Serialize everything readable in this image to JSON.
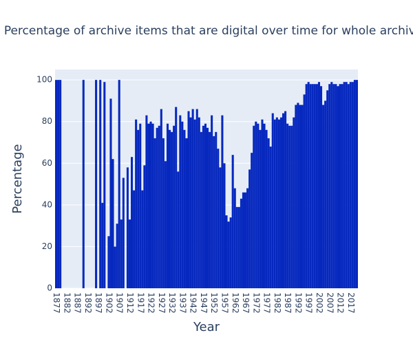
{
  "chart_data": {
    "type": "bar",
    "title": "Percentage of archive items that are digital over time for whole archive",
    "x_label": "Year",
    "y_label": "Percentage",
    "color": "#0628be",
    "grid": true,
    "x": [
      1877,
      1878,
      1879,
      1880,
      1881,
      1882,
      1883,
      1884,
      1885,
      1886,
      1887,
      1888,
      1889,
      1890,
      1891,
      1892,
      1893,
      1894,
      1895,
      1896,
      1897,
      1898,
      1899,
      1900,
      1901,
      1902,
      1903,
      1904,
      1905,
      1906,
      1907,
      1908,
      1909,
      1910,
      1911,
      1912,
      1913,
      1914,
      1915,
      1916,
      1917,
      1918,
      1919,
      1920,
      1921,
      1922,
      1923,
      1924,
      1925,
      1926,
      1927,
      1928,
      1929,
      1930,
      1931,
      1932,
      1933,
      1934,
      1935,
      1936,
      1937,
      1938,
      1939,
      1940,
      1941,
      1942,
      1943,
      1944,
      1945,
      1946,
      1947,
      1948,
      1949,
      1950,
      1951,
      1952,
      1953,
      1954,
      1955,
      1956,
      1957,
      1958,
      1959,
      1960,
      1961,
      1962,
      1963,
      1964,
      1965,
      1966,
      1967,
      1968,
      1969,
      1970,
      1971,
      1972,
      1973,
      1974,
      1975,
      1976,
      1977,
      1978,
      1979,
      1980,
      1981,
      1982,
      1983,
      1984,
      1985,
      1986,
      1987,
      1988,
      1989,
      1990,
      1991,
      1992,
      1993,
      1994,
      1995,
      1996,
      1997,
      1998,
      1999,
      2000,
      2001,
      2002,
      2003,
      2004,
      2005,
      2006,
      2007,
      2008,
      2009,
      2010,
      2011,
      2012,
      2013,
      2014,
      2015,
      2016,
      2017,
      2018,
      2019,
      2020
    ],
    "values": [
      100,
      100,
      100,
      0,
      0,
      0,
      0,
      0,
      0,
      0,
      0,
      0,
      0,
      100,
      0,
      0,
      0,
      0,
      0,
      100,
      0,
      100,
      41,
      99,
      0,
      25,
      91,
      62,
      20,
      31,
      100,
      33,
      53,
      0,
      58,
      33,
      63,
      47,
      81,
      76,
      79,
      47,
      59,
      83,
      79,
      80,
      79,
      72,
      77,
      78,
      86,
      72,
      61,
      79,
      76,
      75,
      78,
      87,
      56,
      83,
      80,
      76,
      72,
      85,
      82,
      86,
      81,
      86,
      82,
      75,
      78,
      79,
      77,
      75,
      83,
      73,
      75,
      67,
      58,
      83,
      60,
      35,
      32,
      34,
      64,
      48,
      39,
      39,
      43,
      46,
      46,
      48,
      57,
      65,
      78,
      80,
      79,
      76,
      81,
      79,
      76,
      72,
      68,
      84,
      81,
      82,
      81,
      82,
      84,
      85,
      79,
      78,
      78,
      82,
      88,
      89,
      88,
      88,
      93,
      98,
      99,
      98,
      98,
      98,
      98,
      99,
      97,
      88,
      90,
      95,
      98,
      99,
      98,
      98,
      97,
      98,
      98,
      99,
      99,
      98,
      99,
      99,
      100,
      100
    ],
    "xlim": [
      1876.5,
      2020.5
    ],
    "xticks": [
      1877,
      1882,
      1887,
      1892,
      1897,
      1902,
      1907,
      1912,
      1917,
      1922,
      1927,
      1932,
      1937,
      1942,
      1947,
      1952,
      1957,
      1962,
      1967,
      1972,
      1977,
      1982,
      1987,
      1992,
      1997,
      2002,
      2007,
      2012,
      2017
    ],
    "ylim": [
      0,
      105
    ],
    "yticks": [
      0,
      20,
      40,
      60,
      80,
      100
    ]
  }
}
